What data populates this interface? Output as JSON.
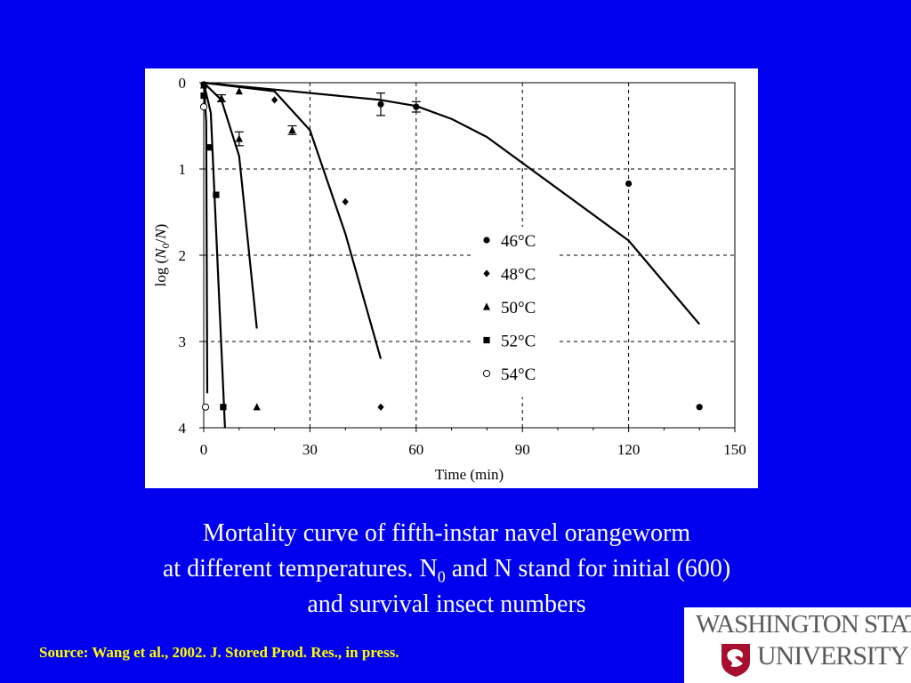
{
  "chart_data": {
    "type": "line",
    "xlabel": "Time (min)",
    "ylabel_prefix": "log (",
    "ylabel_var": "N",
    "ylabel_sub": "0",
    "ylabel_slash": "/",
    "ylabel_var2": "N",
    "ylabel_suffix": ")",
    "xlim": [
      0,
      150
    ],
    "ylim": [
      0,
      4
    ],
    "y_inverted": true,
    "grid": true,
    "x_ticks": [
      0,
      30,
      60,
      90,
      120,
      150
    ],
    "y_ticks": [
      0,
      1,
      2,
      3,
      4
    ],
    "legend_position": "center-right",
    "series": [
      {
        "name": "46°C",
        "marker": "circle",
        "points": [
          [
            0,
            0.02
          ],
          [
            50,
            0.25
          ],
          [
            60,
            0.28
          ],
          [
            120,
            1.17
          ],
          [
            140,
            3.76
          ]
        ],
        "errors": [
          0,
          0.13,
          0.06,
          0,
          0
        ],
        "curve": [
          [
            0,
            0
          ],
          [
            50,
            0.2
          ],
          [
            60,
            0.27
          ],
          [
            70,
            0.42
          ],
          [
            80,
            0.63
          ],
          [
            120,
            1.83
          ],
          [
            140,
            2.8
          ]
        ]
      },
      {
        "name": "48°C",
        "marker": "diamond",
        "points": [
          [
            0,
            0.02
          ],
          [
            20,
            0.2
          ],
          [
            40,
            1.38
          ],
          [
            50,
            3.76
          ]
        ],
        "errors": [
          0,
          0,
          0,
          0
        ],
        "curve": [
          [
            0,
            0
          ],
          [
            20,
            0.1
          ],
          [
            30,
            0.55
          ],
          [
            40,
            1.75
          ],
          [
            50,
            3.2
          ]
        ]
      },
      {
        "name": "50°C",
        "marker": "triangle",
        "points": [
          [
            0,
            0.03
          ],
          [
            5,
            0.18
          ],
          [
            10,
            0.1
          ],
          [
            10,
            0.65
          ],
          [
            25,
            0.55
          ],
          [
            15,
            3.76
          ]
        ],
        "errors": [
          0,
          0.04,
          0,
          0.08,
          0.05,
          0
        ],
        "curve": [
          [
            0,
            0
          ],
          [
            5,
            0.2
          ],
          [
            10,
            0.85
          ],
          [
            15,
            2.85
          ]
        ]
      },
      {
        "name": "52°C",
        "marker": "square",
        "points": [
          [
            0,
            0.15
          ],
          [
            1.5,
            0.75
          ],
          [
            3.5,
            1.3
          ],
          [
            5.5,
            3.76
          ]
        ],
        "errors": [
          0,
          0,
          0,
          0
        ],
        "curve": [
          [
            0,
            0
          ],
          [
            2,
            0.35
          ],
          [
            6,
            4.0
          ]
        ]
      },
      {
        "name": "54°C",
        "marker": "open-circle",
        "points": [
          [
            0,
            0.28
          ],
          [
            0.5,
            3.76
          ]
        ],
        "errors": [
          0,
          0
        ],
        "curve": [
          [
            0,
            0
          ],
          [
            0.7,
            0.45
          ],
          [
            1.0,
            3.6
          ]
        ]
      }
    ]
  },
  "caption": {
    "line1": "Mortality curve of fifth-instar navel orangeworm",
    "line2_a": "at different temperatures. N",
    "line2_sub": "0",
    "line2_b": " and N stand for initial (600)",
    "line3": "and survival insect numbers"
  },
  "source": "Source: Wang et al., 2002. J. Stored Prod. Res., in press.",
  "logo": {
    "line1": "WASHINGTON STATE",
    "line2": "UNIVERSITY",
    "colors": {
      "crimson": "#a60f2d",
      "gray": "#5a5a5a"
    }
  },
  "colors": {
    "background": "#0000ee",
    "caption_text": "#ffffff",
    "source_text": "#ffff00"
  }
}
